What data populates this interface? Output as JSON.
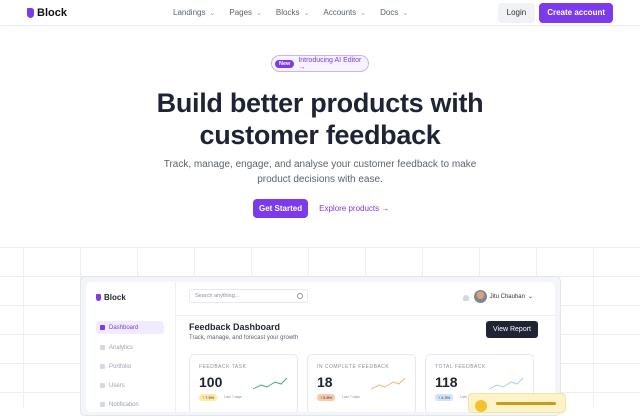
{
  "nav": {
    "brand": "Block",
    "menu": [
      "Landings",
      "Pages",
      "Blocks",
      "Accounts",
      "Docs"
    ],
    "login": "Login",
    "create": "Create account"
  },
  "hero": {
    "badge_new": "New",
    "badge_text": "Introducing AI Editor →",
    "title_line1": "Build better products with",
    "title_line2": "customer feedback",
    "subtitle": "Track, manage, engage, and analyse your customer feedback to make product decisions with ease.",
    "primary": "Get Started",
    "secondary": "Explore products →"
  },
  "dashboard": {
    "brand": "Block",
    "sidebar": [
      "Dashboard",
      "Analytics",
      "Portfolio",
      "Users",
      "Notification"
    ],
    "search_placeholder": "Search anything...",
    "user": "Jitu Chauhan",
    "title": "Feedback Dashboard",
    "description": "Track, manage, and forecast your growth",
    "view_report": "View Report",
    "cards": [
      {
        "label": "FEEDBACK TASK",
        "value": "100",
        "change": "↑ 7.5%",
        "period": "Last 7 days",
        "color": "#3fae6a",
        "badge": "#fdeaa0"
      },
      {
        "label": "IN COMPLETE FEEDBACK",
        "value": "18",
        "change": "↑ 5.8%",
        "period": "Last 7 days",
        "color": "#f4b183",
        "badge": "#f9c9a8"
      },
      {
        "label": "TOTAL FEEDBACK",
        "value": "118",
        "change": "↑ 4.3%",
        "period": "Last 7 days",
        "color": "#a9cff5",
        "badge": "#cde4fb"
      }
    ]
  }
}
